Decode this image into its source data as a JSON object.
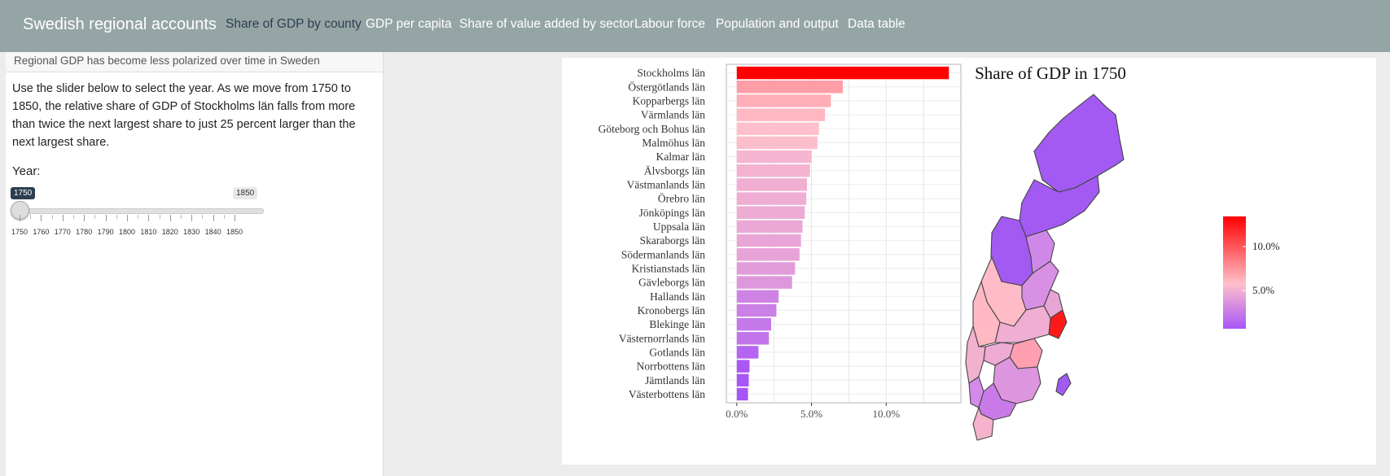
{
  "navbar": {
    "brand": "Swedish regional accounts",
    "tabs": [
      {
        "label": "Share of GDP by county",
        "active": true
      },
      {
        "label": "GDP per capita",
        "active": false
      },
      {
        "label": "Share of value added by sector",
        "active": false
      },
      {
        "label": "Labour force",
        "active": false
      },
      {
        "label": "Population and output",
        "active": false
      },
      {
        "label": "Data table",
        "active": false
      }
    ],
    "colors": {
      "background": "#95a5a6",
      "text": "#ffffff",
      "active_text": "#2c3e50"
    }
  },
  "sidebar": {
    "header": "Regional GDP has become less polarized over time in Sweden",
    "description": "Use the slider below to select the year. As we move from 1750 to 1850, the relative share of GDP of Stockholms län falls from more than twice the next largest share to just 25 percent larger than the next largest share.",
    "year_label": "Year:",
    "slider": {
      "min": 1750,
      "max": 1850,
      "value": 1750,
      "value_label": "1750",
      "max_label": "1850",
      "tick_labels": [
        "1750",
        "1760",
        "1770",
        "1780",
        "1790",
        "1800",
        "1810",
        "1820",
        "1830",
        "1840",
        "1850"
      ]
    }
  },
  "chart_data": [
    {
      "type": "bar",
      "orientation": "horizontal",
      "categories": [
        "Stockholms län",
        "Östergötlands län",
        "Kopparbergs län",
        "Värmlands län",
        "Göteborg och Bohus län",
        "Malmöhus län",
        "Kalmar län",
        "Älvsborgs län",
        "Västmanlands län",
        "Örebro län",
        "Jönköpings län",
        "Uppsala län",
        "Skaraborgs län",
        "Södermanlands län",
        "Kristianstads län",
        "Gävleborgs län",
        "Hallands län",
        "Kronobergs län",
        "Blekinge län",
        "Västernorrlands län",
        "Gotlands län",
        "Norrbottens län",
        "Jämtlands län",
        "Västerbottens län"
      ],
      "values": [
        14.2,
        7.1,
        6.3,
        5.9,
        5.5,
        5.4,
        5.0,
        4.9,
        4.7,
        4.65,
        4.55,
        4.4,
        4.3,
        4.2,
        3.9,
        3.7,
        2.8,
        2.65,
        2.3,
        2.15,
        1.45,
        0.85,
        0.8,
        0.75
      ],
      "xticks": [
        "0.0%",
        "5.0%",
        "10.0%"
      ],
      "xlim": [
        -0.7,
        15.0
      ],
      "color_scale": {
        "low": "#a855f7",
        "mid": "#ffc0cb",
        "high": "#ff0000"
      },
      "grid": true
    },
    {
      "type": "choropleth",
      "title": "Share of GDP in 1750",
      "legend_labels": [
        "10.0%",
        "5.0%"
      ],
      "legend_placement": "right",
      "color_scale": {
        "low": "#a855f7",
        "mid": "#ffc0cb",
        "high": "#ff0000"
      }
    }
  ]
}
